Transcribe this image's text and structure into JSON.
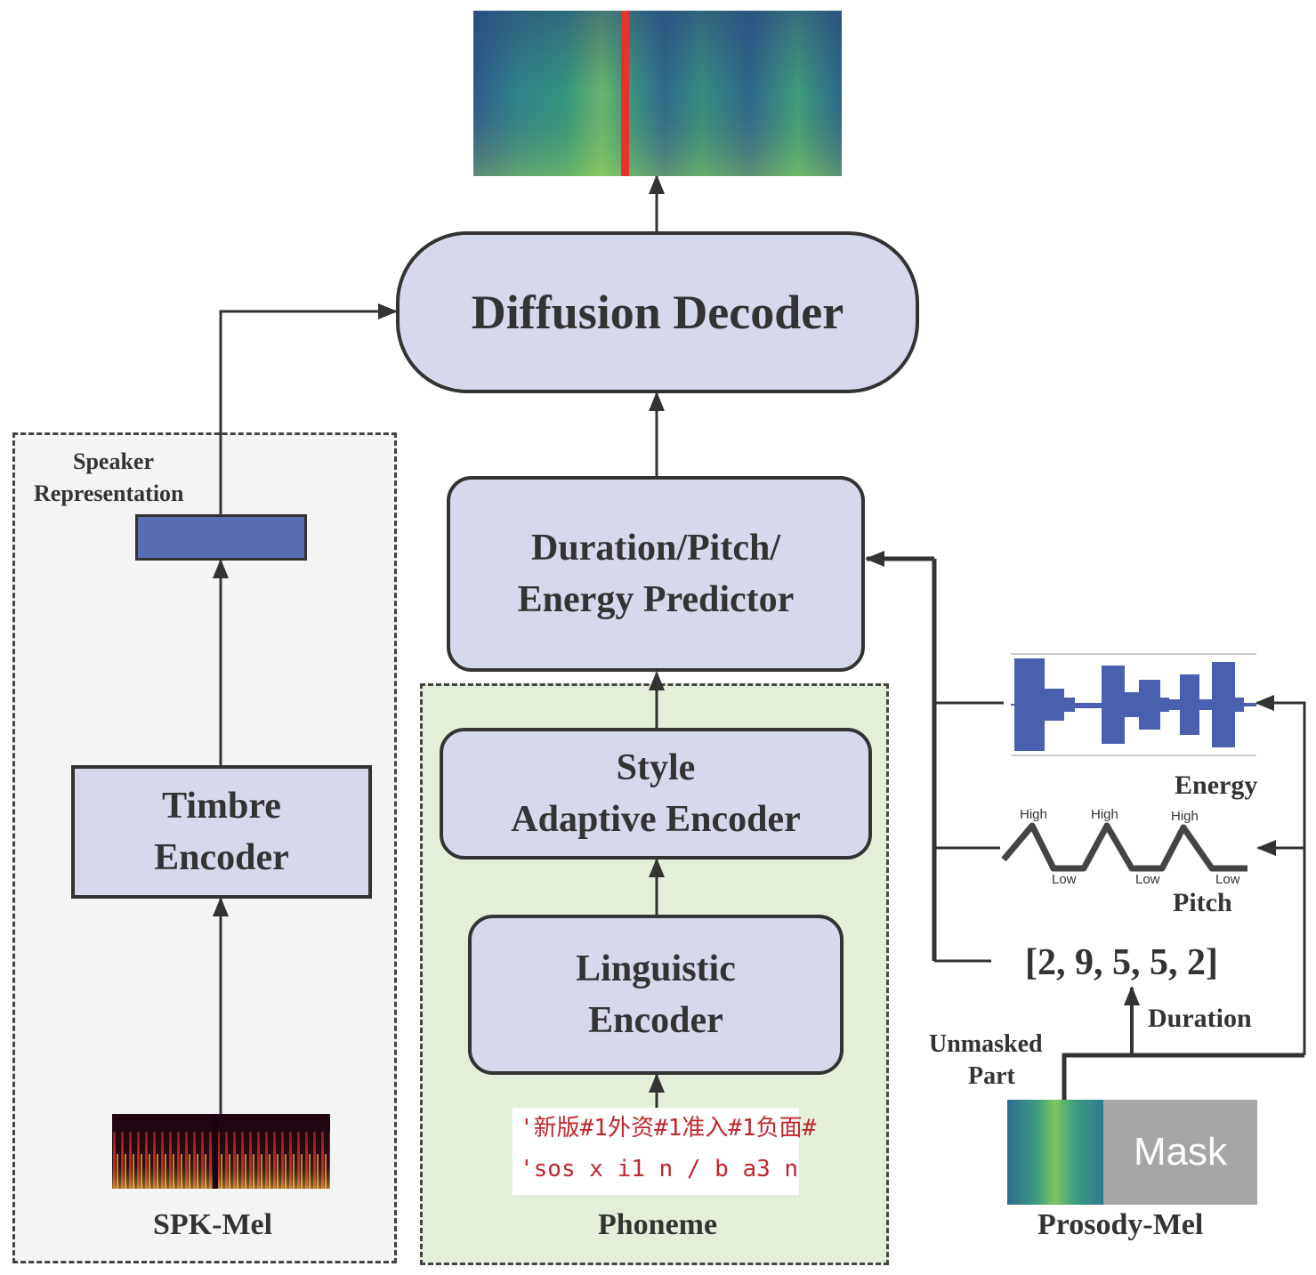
{
  "blocks": {
    "diffusion_decoder": "Diffusion Decoder",
    "predictor_line1": "Duration/Pitch/",
    "predictor_line2": "Energy Predictor",
    "style_line1": "Style",
    "style_line2": "Adaptive Encoder",
    "linguistic_line1": "Linguistic",
    "linguistic_line2": "Encoder",
    "timbre_line1": "Timbre",
    "timbre_line2": "Encoder"
  },
  "labels": {
    "speaker_line1": "Speaker",
    "speaker_line2": "Representation",
    "spk_mel": "SPK-Mel",
    "phoneme": "Phoneme",
    "prosody_mel": "Prosody-Mel",
    "energy": "Energy",
    "pitch": "Pitch",
    "duration": "Duration",
    "duration_values": "[2, 9, 5, 5, 2]",
    "unmasked_line1": "Unmasked",
    "unmasked_line2": "Part",
    "mask": "Mask"
  },
  "pitch_marks": {
    "high": "High",
    "low": "Low"
  },
  "phoneme_text": {
    "line1": "'新版#1外资#1准入#1负面#",
    "line2": "'sos x i1 n / b a3 n"
  },
  "colors": {
    "block_fill": "#d6d8ec",
    "speaker_vector": "#5a6cb4",
    "left_group_fill": "#f4f4f4",
    "center_group_fill": "#e4efda",
    "waveform": "#4a5fae",
    "phoneme_text": "#c0262c"
  },
  "icons": {
    "output_mel": "mel-spectrogram-icon",
    "spk_mel": "spk-mel-spectrogram-icon",
    "energy": "waveform-icon",
    "pitch": "pitch-contour-icon",
    "prosody_mel": "masked-mel-icon"
  }
}
